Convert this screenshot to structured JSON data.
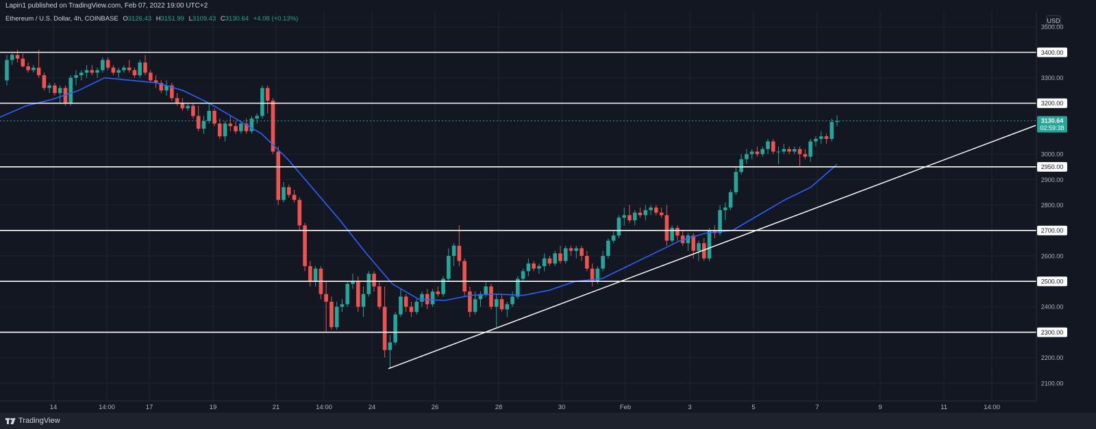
{
  "header": {
    "publisher": "Lapin1 published on TradingView.com, Feb 07, 2022 19:00 UTC+2"
  },
  "footer": {
    "brand": "TradingView"
  },
  "colors": {
    "background": "#131722",
    "up": "#26a69a",
    "down": "#ef5350",
    "ma": "#2962ff",
    "levels": "#ffffff",
    "text": "#d1d4dc",
    "price_tag": "#26a69a"
  },
  "legend": {
    "symbol": "Ethereum / U.S. Dollar, 4h, COINBASE",
    "open_label": "O",
    "open": "3126.43",
    "high_label": "H",
    "high": "3151.99",
    "low_label": "L",
    "low": "3109.43",
    "close_label": "C",
    "close": "3130.64",
    "change": "+4.08 (+0.13%)"
  },
  "chart_data": {
    "type": "candlestick",
    "currency": "USD",
    "y_axis_ticks": [
      "3500.00",
      "3300.00",
      "3000.00",
      "2900.00",
      "2800.00",
      "2600.00",
      "2400.00",
      "2200.00",
      "2100.00"
    ],
    "ylim": [
      2030,
      3560
    ],
    "x_ticks": [
      "14",
      "14:00",
      "17",
      "19",
      "21",
      "14:00",
      "24",
      "26",
      "28",
      "30",
      "Feb",
      "3",
      "5",
      "7",
      "9",
      "11",
      "14:00"
    ],
    "horizontal_levels": [
      {
        "value": 3400,
        "label": "3400.00"
      },
      {
        "value": 3200,
        "label": "3200.00"
      },
      {
        "value": 2950,
        "label": "2950.00"
      },
      {
        "value": 2700,
        "label": "2700.00"
      },
      {
        "value": 2500,
        "label": "2500.00"
      },
      {
        "value": 2300,
        "label": "2300.00"
      }
    ],
    "last_price": {
      "value": 3130.64,
      "label": "3130.64",
      "countdown": "02:59:38"
    },
    "trendline": {
      "from": {
        "bar": 0,
        "price": 2157
      },
      "to": {
        "bar": 1,
        "price": 3113
      }
    },
    "ma_keypoints": [
      3145,
      3190,
      3215,
      3250,
      3300,
      3290,
      3280,
      3250,
      3200,
      3140,
      3080,
      2980,
      2860,
      2740,
      2610,
      2490,
      2430,
      2425,
      2445,
      2450,
      2445,
      2465,
      2500,
      2510,
      2560,
      2610,
      2660,
      2690,
      2700,
      2760,
      2820,
      2870,
      2960
    ],
    "candles": [
      {
        "o": 3290,
        "h": 3390,
        "l": 3270,
        "c": 3370
      },
      {
        "o": 3370,
        "h": 3400,
        "l": 3350,
        "c": 3390
      },
      {
        "o": 3390,
        "h": 3410,
        "l": 3360,
        "c": 3375
      },
      {
        "o": 3375,
        "h": 3395,
        "l": 3340,
        "c": 3345
      },
      {
        "o": 3345,
        "h": 3360,
        "l": 3320,
        "c": 3330
      },
      {
        "o": 3330,
        "h": 3350,
        "l": 3320,
        "c": 3340
      },
      {
        "o": 3340,
        "h": 3410,
        "l": 3300,
        "c": 3310
      },
      {
        "o": 3310,
        "h": 3320,
        "l": 3250,
        "c": 3260
      },
      {
        "o": 3260,
        "h": 3280,
        "l": 3240,
        "c": 3270
      },
      {
        "o": 3270,
        "h": 3280,
        "l": 3230,
        "c": 3240
      },
      {
        "o": 3240,
        "h": 3270,
        "l": 3200,
        "c": 3260
      },
      {
        "o": 3260,
        "h": 3270,
        "l": 3190,
        "c": 3200
      },
      {
        "o": 3200,
        "h": 3310,
        "l": 3190,
        "c": 3300
      },
      {
        "o": 3300,
        "h": 3330,
        "l": 3270,
        "c": 3310
      },
      {
        "o": 3310,
        "h": 3330,
        "l": 3290,
        "c": 3320
      },
      {
        "o": 3320,
        "h": 3350,
        "l": 3300,
        "c": 3330
      },
      {
        "o": 3330,
        "h": 3350,
        "l": 3310,
        "c": 3320
      },
      {
        "o": 3320,
        "h": 3340,
        "l": 3300,
        "c": 3330
      },
      {
        "o": 3330,
        "h": 3380,
        "l": 3320,
        "c": 3370
      },
      {
        "o": 3370,
        "h": 3380,
        "l": 3330,
        "c": 3340
      },
      {
        "o": 3340,
        "h": 3350,
        "l": 3310,
        "c": 3320
      },
      {
        "o": 3320,
        "h": 3340,
        "l": 3300,
        "c": 3330
      },
      {
        "o": 3330,
        "h": 3350,
        "l": 3320,
        "c": 3340
      },
      {
        "o": 3340,
        "h": 3370,
        "l": 3320,
        "c": 3330
      },
      {
        "o": 3330,
        "h": 3340,
        "l": 3300,
        "c": 3310
      },
      {
        "o": 3310,
        "h": 3370,
        "l": 3300,
        "c": 3360
      },
      {
        "o": 3360,
        "h": 3390,
        "l": 3310,
        "c": 3320
      },
      {
        "o": 3320,
        "h": 3330,
        "l": 3280,
        "c": 3290
      },
      {
        "o": 3290,
        "h": 3310,
        "l": 3260,
        "c": 3280
      },
      {
        "o": 3280,
        "h": 3290,
        "l": 3240,
        "c": 3250
      },
      {
        "o": 3250,
        "h": 3290,
        "l": 3230,
        "c": 3270
      },
      {
        "o": 3270,
        "h": 3280,
        "l": 3210,
        "c": 3220
      },
      {
        "o": 3220,
        "h": 3240,
        "l": 3190,
        "c": 3200
      },
      {
        "o": 3200,
        "h": 3220,
        "l": 3170,
        "c": 3180
      },
      {
        "o": 3180,
        "h": 3200,
        "l": 3170,
        "c": 3190
      },
      {
        "o": 3190,
        "h": 3200,
        "l": 3140,
        "c": 3150
      },
      {
        "o": 3150,
        "h": 3190,
        "l": 3090,
        "c": 3100
      },
      {
        "o": 3100,
        "h": 3150,
        "l": 3080,
        "c": 3130
      },
      {
        "o": 3130,
        "h": 3200,
        "l": 3120,
        "c": 3170
      },
      {
        "o": 3170,
        "h": 3180,
        "l": 3110,
        "c": 3120
      },
      {
        "o": 3120,
        "h": 3140,
        "l": 3060,
        "c": 3070
      },
      {
        "o": 3070,
        "h": 3130,
        "l": 3050,
        "c": 3120
      },
      {
        "o": 3120,
        "h": 3150,
        "l": 3090,
        "c": 3110
      },
      {
        "o": 3110,
        "h": 3130,
        "l": 3080,
        "c": 3090
      },
      {
        "o": 3090,
        "h": 3130,
        "l": 3080,
        "c": 3120
      },
      {
        "o": 3120,
        "h": 3140,
        "l": 3080,
        "c": 3090
      },
      {
        "o": 3090,
        "h": 3150,
        "l": 3080,
        "c": 3140
      },
      {
        "o": 3140,
        "h": 3160,
        "l": 3120,
        "c": 3150
      },
      {
        "o": 3150,
        "h": 3270,
        "l": 3140,
        "c": 3260
      },
      {
        "o": 3260,
        "h": 3270,
        "l": 3160,
        "c": 3210
      },
      {
        "o": 3210,
        "h": 3220,
        "l": 3000,
        "c": 3010
      },
      {
        "o": 3010,
        "h": 3030,
        "l": 2800,
        "c": 2820
      },
      {
        "o": 2820,
        "h": 2890,
        "l": 2810,
        "c": 2870
      },
      {
        "o": 2870,
        "h": 2880,
        "l": 2830,
        "c": 2840
      },
      {
        "o": 2840,
        "h": 2860,
        "l": 2810,
        "c": 2820
      },
      {
        "o": 2820,
        "h": 2830,
        "l": 2700,
        "c": 2720
      },
      {
        "o": 2720,
        "h": 2730,
        "l": 2540,
        "c": 2560
      },
      {
        "o": 2560,
        "h": 2580,
        "l": 2480,
        "c": 2500
      },
      {
        "o": 2500,
        "h": 2560,
        "l": 2480,
        "c": 2550
      },
      {
        "o": 2550,
        "h": 2560,
        "l": 2430,
        "c": 2450
      },
      {
        "o": 2450,
        "h": 2500,
        "l": 2300,
        "c": 2420
      },
      {
        "o": 2420,
        "h": 2440,
        "l": 2310,
        "c": 2320
      },
      {
        "o": 2320,
        "h": 2420,
        "l": 2310,
        "c": 2400
      },
      {
        "o": 2400,
        "h": 2430,
        "l": 2380,
        "c": 2410
      },
      {
        "o": 2410,
        "h": 2500,
        "l": 2400,
        "c": 2490
      },
      {
        "o": 2490,
        "h": 2530,
        "l": 2470,
        "c": 2500
      },
      {
        "o": 2500,
        "h": 2520,
        "l": 2380,
        "c": 2400
      },
      {
        "o": 2400,
        "h": 2480,
        "l": 2360,
        "c": 2450
      },
      {
        "o": 2450,
        "h": 2540,
        "l": 2440,
        "c": 2530
      },
      {
        "o": 2530,
        "h": 2540,
        "l": 2460,
        "c": 2480
      },
      {
        "o": 2480,
        "h": 2500,
        "l": 2390,
        "c": 2400
      },
      {
        "o": 2400,
        "h": 2480,
        "l": 2200,
        "c": 2230
      },
      {
        "o": 2230,
        "h": 2290,
        "l": 2160,
        "c": 2260
      },
      {
        "o": 2260,
        "h": 2380,
        "l": 2250,
        "c": 2370
      },
      {
        "o": 2370,
        "h": 2470,
        "l": 2360,
        "c": 2440
      },
      {
        "o": 2440,
        "h": 2450,
        "l": 2380,
        "c": 2400
      },
      {
        "o": 2400,
        "h": 2420,
        "l": 2360,
        "c": 2380
      },
      {
        "o": 2380,
        "h": 2430,
        "l": 2370,
        "c": 2420
      },
      {
        "o": 2420,
        "h": 2460,
        "l": 2400,
        "c": 2450
      },
      {
        "o": 2450,
        "h": 2470,
        "l": 2390,
        "c": 2410
      },
      {
        "o": 2410,
        "h": 2470,
        "l": 2400,
        "c": 2460
      },
      {
        "o": 2460,
        "h": 2480,
        "l": 2440,
        "c": 2450
      },
      {
        "o": 2450,
        "h": 2520,
        "l": 2440,
        "c": 2510
      },
      {
        "o": 2510,
        "h": 2630,
        "l": 2500,
        "c": 2600
      },
      {
        "o": 2600,
        "h": 2650,
        "l": 2560,
        "c": 2640
      },
      {
        "o": 2640,
        "h": 2720,
        "l": 2560,
        "c": 2580
      },
      {
        "o": 2580,
        "h": 2590,
        "l": 2440,
        "c": 2460
      },
      {
        "o": 2460,
        "h": 2480,
        "l": 2360,
        "c": 2380
      },
      {
        "o": 2380,
        "h": 2460,
        "l": 2370,
        "c": 2430
      },
      {
        "o": 2430,
        "h": 2460,
        "l": 2400,
        "c": 2450
      },
      {
        "o": 2450,
        "h": 2500,
        "l": 2440,
        "c": 2480
      },
      {
        "o": 2480,
        "h": 2490,
        "l": 2390,
        "c": 2400
      },
      {
        "o": 2400,
        "h": 2450,
        "l": 2320,
        "c": 2430
      },
      {
        "o": 2430,
        "h": 2450,
        "l": 2380,
        "c": 2390
      },
      {
        "o": 2390,
        "h": 2420,
        "l": 2360,
        "c": 2410
      },
      {
        "o": 2410,
        "h": 2460,
        "l": 2400,
        "c": 2440
      },
      {
        "o": 2440,
        "h": 2520,
        "l": 2430,
        "c": 2510
      },
      {
        "o": 2510,
        "h": 2550,
        "l": 2500,
        "c": 2540
      },
      {
        "o": 2540,
        "h": 2590,
        "l": 2520,
        "c": 2570
      },
      {
        "o": 2570,
        "h": 2580,
        "l": 2540,
        "c": 2550
      },
      {
        "o": 2550,
        "h": 2570,
        "l": 2530,
        "c": 2560
      },
      {
        "o": 2560,
        "h": 2610,
        "l": 2540,
        "c": 2590
      },
      {
        "o": 2590,
        "h": 2600,
        "l": 2560,
        "c": 2570
      },
      {
        "o": 2570,
        "h": 2620,
        "l": 2560,
        "c": 2610
      },
      {
        "o": 2610,
        "h": 2640,
        "l": 2570,
        "c": 2580
      },
      {
        "o": 2580,
        "h": 2640,
        "l": 2570,
        "c": 2630
      },
      {
        "o": 2630,
        "h": 2640,
        "l": 2600,
        "c": 2620
      },
      {
        "o": 2620,
        "h": 2640,
        "l": 2590,
        "c": 2630
      },
      {
        "o": 2630,
        "h": 2640,
        "l": 2580,
        "c": 2600
      },
      {
        "o": 2600,
        "h": 2620,
        "l": 2540,
        "c": 2550
      },
      {
        "o": 2550,
        "h": 2570,
        "l": 2480,
        "c": 2500
      },
      {
        "o": 2500,
        "h": 2560,
        "l": 2490,
        "c": 2550
      },
      {
        "o": 2550,
        "h": 2620,
        "l": 2540,
        "c": 2600
      },
      {
        "o": 2600,
        "h": 2670,
        "l": 2590,
        "c": 2660
      },
      {
        "o": 2660,
        "h": 2700,
        "l": 2650,
        "c": 2680
      },
      {
        "o": 2680,
        "h": 2760,
        "l": 2670,
        "c": 2750
      },
      {
        "o": 2750,
        "h": 2790,
        "l": 2720,
        "c": 2760
      },
      {
        "o": 2760,
        "h": 2800,
        "l": 2730,
        "c": 2740
      },
      {
        "o": 2740,
        "h": 2780,
        "l": 2720,
        "c": 2770
      },
      {
        "o": 2770,
        "h": 2790,
        "l": 2750,
        "c": 2760
      },
      {
        "o": 2760,
        "h": 2800,
        "l": 2740,
        "c": 2780
      },
      {
        "o": 2780,
        "h": 2800,
        "l": 2760,
        "c": 2790
      },
      {
        "o": 2790,
        "h": 2800,
        "l": 2760,
        "c": 2770
      },
      {
        "o": 2770,
        "h": 2790,
        "l": 2750,
        "c": 2760
      },
      {
        "o": 2760,
        "h": 2800,
        "l": 2640,
        "c": 2660
      },
      {
        "o": 2660,
        "h": 2720,
        "l": 2650,
        "c": 2710
      },
      {
        "o": 2710,
        "h": 2720,
        "l": 2660,
        "c": 2680
      },
      {
        "o": 2680,
        "h": 2700,
        "l": 2640,
        "c": 2650
      },
      {
        "o": 2650,
        "h": 2690,
        "l": 2620,
        "c": 2680
      },
      {
        "o": 2680,
        "h": 2690,
        "l": 2590,
        "c": 2620
      },
      {
        "o": 2620,
        "h": 2660,
        "l": 2580,
        "c": 2650
      },
      {
        "o": 2650,
        "h": 2670,
        "l": 2580,
        "c": 2590
      },
      {
        "o": 2590,
        "h": 2710,
        "l": 2580,
        "c": 2700
      },
      {
        "o": 2700,
        "h": 2720,
        "l": 2670,
        "c": 2690
      },
      {
        "o": 2690,
        "h": 2800,
        "l": 2680,
        "c": 2780
      },
      {
        "o": 2780,
        "h": 2810,
        "l": 2740,
        "c": 2790
      },
      {
        "o": 2790,
        "h": 2860,
        "l": 2780,
        "c": 2850
      },
      {
        "o": 2850,
        "h": 2950,
        "l": 2840,
        "c": 2930
      },
      {
        "o": 2930,
        "h": 3000,
        "l": 2920,
        "c": 2980
      },
      {
        "o": 2980,
        "h": 3020,
        "l": 2960,
        "c": 3000
      },
      {
        "o": 3000,
        "h": 3020,
        "l": 2980,
        "c": 3010
      },
      {
        "o": 3010,
        "h": 3030,
        "l": 2990,
        "c": 3000
      },
      {
        "o": 3000,
        "h": 3030,
        "l": 2990,
        "c": 3020
      },
      {
        "o": 3020,
        "h": 3060,
        "l": 3000,
        "c": 3050
      },
      {
        "o": 3050,
        "h": 3060,
        "l": 3000,
        "c": 3010
      },
      {
        "o": 3010,
        "h": 3030,
        "l": 2960,
        "c": 3010
      },
      {
        "o": 3010,
        "h": 3040,
        "l": 3000,
        "c": 3020
      },
      {
        "o": 3020,
        "h": 3030,
        "l": 3000,
        "c": 3010
      },
      {
        "o": 3010,
        "h": 3030,
        "l": 3000,
        "c": 3020
      },
      {
        "o": 3020,
        "h": 3030,
        "l": 2950,
        "c": 3000
      },
      {
        "o": 3000,
        "h": 3020,
        "l": 2980,
        "c": 2990
      },
      {
        "o": 2990,
        "h": 3060,
        "l": 2970,
        "c": 3050
      },
      {
        "o": 3050,
        "h": 3070,
        "l": 3030,
        "c": 3060
      },
      {
        "o": 3060,
        "h": 3090,
        "l": 3040,
        "c": 3070
      },
      {
        "o": 3070,
        "h": 3080,
        "l": 3040,
        "c": 3060
      },
      {
        "o": 3060,
        "h": 3140,
        "l": 3050,
        "c": 3126
      },
      {
        "o": 3126.43,
        "h": 3151.99,
        "l": 3109.43,
        "c": 3130.64
      }
    ]
  }
}
